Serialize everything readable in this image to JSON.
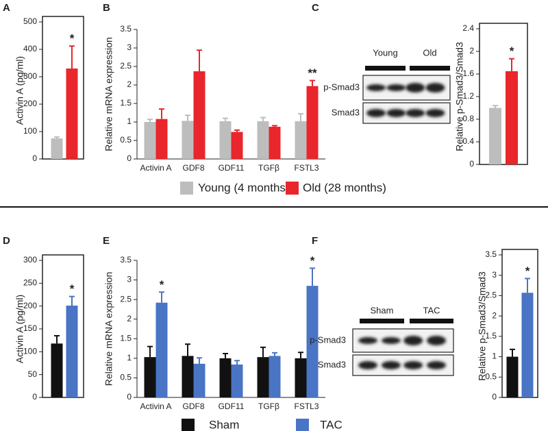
{
  "chart_data": [
    {
      "type": "bar",
      "panel": "A",
      "ylabel": "Activin A (pg/ml)",
      "categories": [
        null,
        null
      ],
      "values": [
        75,
        330
      ],
      "errors": [
        5,
        82
      ],
      "colors": [
        "#bdbdbd",
        "#e8262b"
      ],
      "annotations": [
        null,
        "*"
      ],
      "ylim": [
        0,
        500
      ],
      "yticks": [
        0,
        100,
        200,
        300,
        400,
        500
      ],
      "frame": true
    },
    {
      "type": "grouped-bar",
      "panel": "B",
      "ylabel": "Relative mRNA expression",
      "categories": [
        "Activin A",
        "GDF8",
        "GDF11",
        "TGFβ",
        "FSTL3"
      ],
      "series": [
        {
          "name": "Young (4 months)",
          "color": "#bdbdbd",
          "values": [
            1.0,
            1.03,
            1.02,
            1.02,
            1.02
          ],
          "errors": [
            0.07,
            0.15,
            0.08,
            0.1,
            0.2
          ],
          "annotations": [
            null,
            null,
            null,
            null,
            null
          ]
        },
        {
          "name": "Old (28 months)",
          "color": "#e8262b",
          "values": [
            1.08,
            2.37,
            0.73,
            0.87,
            1.97
          ],
          "errors": [
            0.27,
            0.57,
            0.05,
            0.03,
            0.15
          ],
          "annotations": [
            null,
            null,
            null,
            null,
            "**"
          ]
        }
      ],
      "ylim": [
        0,
        3.5
      ],
      "yticks": [
        0,
        0.5,
        1,
        1.5,
        2,
        2.5,
        3,
        3.5
      ],
      "frame": false
    },
    {
      "type": "bar",
      "panel": "C",
      "ylabel": "Relative p-Smad3/Smad3",
      "categories": [
        null,
        null
      ],
      "values": [
        1.0,
        1.65
      ],
      "errors": [
        0.04,
        0.22
      ],
      "colors": [
        "#bdbdbd",
        "#e8262b"
      ],
      "annotations": [
        null,
        "*"
      ],
      "ylim": [
        0,
        2.4
      ],
      "yticks": [
        0,
        0.4,
        0.8,
        1.2,
        1.6,
        2,
        2.4
      ],
      "frame": true
    },
    {
      "type": "bar",
      "panel": "D",
      "ylabel": "Activin A (pg/ml)",
      "categories": [
        null,
        null
      ],
      "values": [
        118,
        201
      ],
      "errors": [
        17,
        20
      ],
      "colors": [
        "#111111",
        "#4a74c4"
      ],
      "annotations": [
        null,
        "*"
      ],
      "ylim": [
        0,
        300
      ],
      "yticks": [
        0,
        50,
        100,
        150,
        200,
        250,
        300
      ],
      "frame": true
    },
    {
      "type": "grouped-bar",
      "panel": "E",
      "ylabel": "Relative mRNA expression",
      "categories": [
        "Activin A",
        "GDF8",
        "GDF11",
        "TGFβ",
        "FSTL3"
      ],
      "series": [
        {
          "name": "Sham",
          "color": "#111111",
          "values": [
            1.03,
            1.06,
            1.0,
            1.03,
            1.0
          ],
          "errors": [
            0.27,
            0.3,
            0.12,
            0.25,
            0.15
          ],
          "annotations": [
            null,
            null,
            null,
            null,
            null
          ]
        },
        {
          "name": "TAC",
          "color": "#4a74c4",
          "values": [
            2.42,
            0.86,
            0.84,
            1.06,
            2.85
          ],
          "errors": [
            0.27,
            0.15,
            0.1,
            0.08,
            0.45
          ],
          "annotations": [
            "*",
            null,
            null,
            null,
            "*"
          ]
        }
      ],
      "ylim": [
        0,
        3.5
      ],
      "yticks": [
        0,
        0.5,
        1,
        1.5,
        2,
        2.5,
        3,
        3.5
      ],
      "frame": false
    },
    {
      "type": "bar",
      "panel": "F",
      "ylabel": "Relative p-Smad3/Smad3",
      "categories": [
        null,
        null
      ],
      "values": [
        1.0,
        2.57
      ],
      "errors": [
        0.18,
        0.35
      ],
      "colors": [
        "#111111",
        "#4a74c4"
      ],
      "annotations": [
        null,
        "*"
      ],
      "ylim": [
        0,
        3.5
      ],
      "yticks": [
        0,
        0.5,
        1,
        1.5,
        2,
        2.5,
        3,
        3.5
      ],
      "frame": true
    }
  ],
  "blots": [
    {
      "groups": [
        "Young",
        "Old"
      ],
      "rows": [
        "p-Smad3",
        "Smad3"
      ]
    },
    {
      "groups": [
        "Sham",
        "TAC"
      ],
      "rows": [
        "p-Smad3",
        "Smad3"
      ]
    }
  ]
}
